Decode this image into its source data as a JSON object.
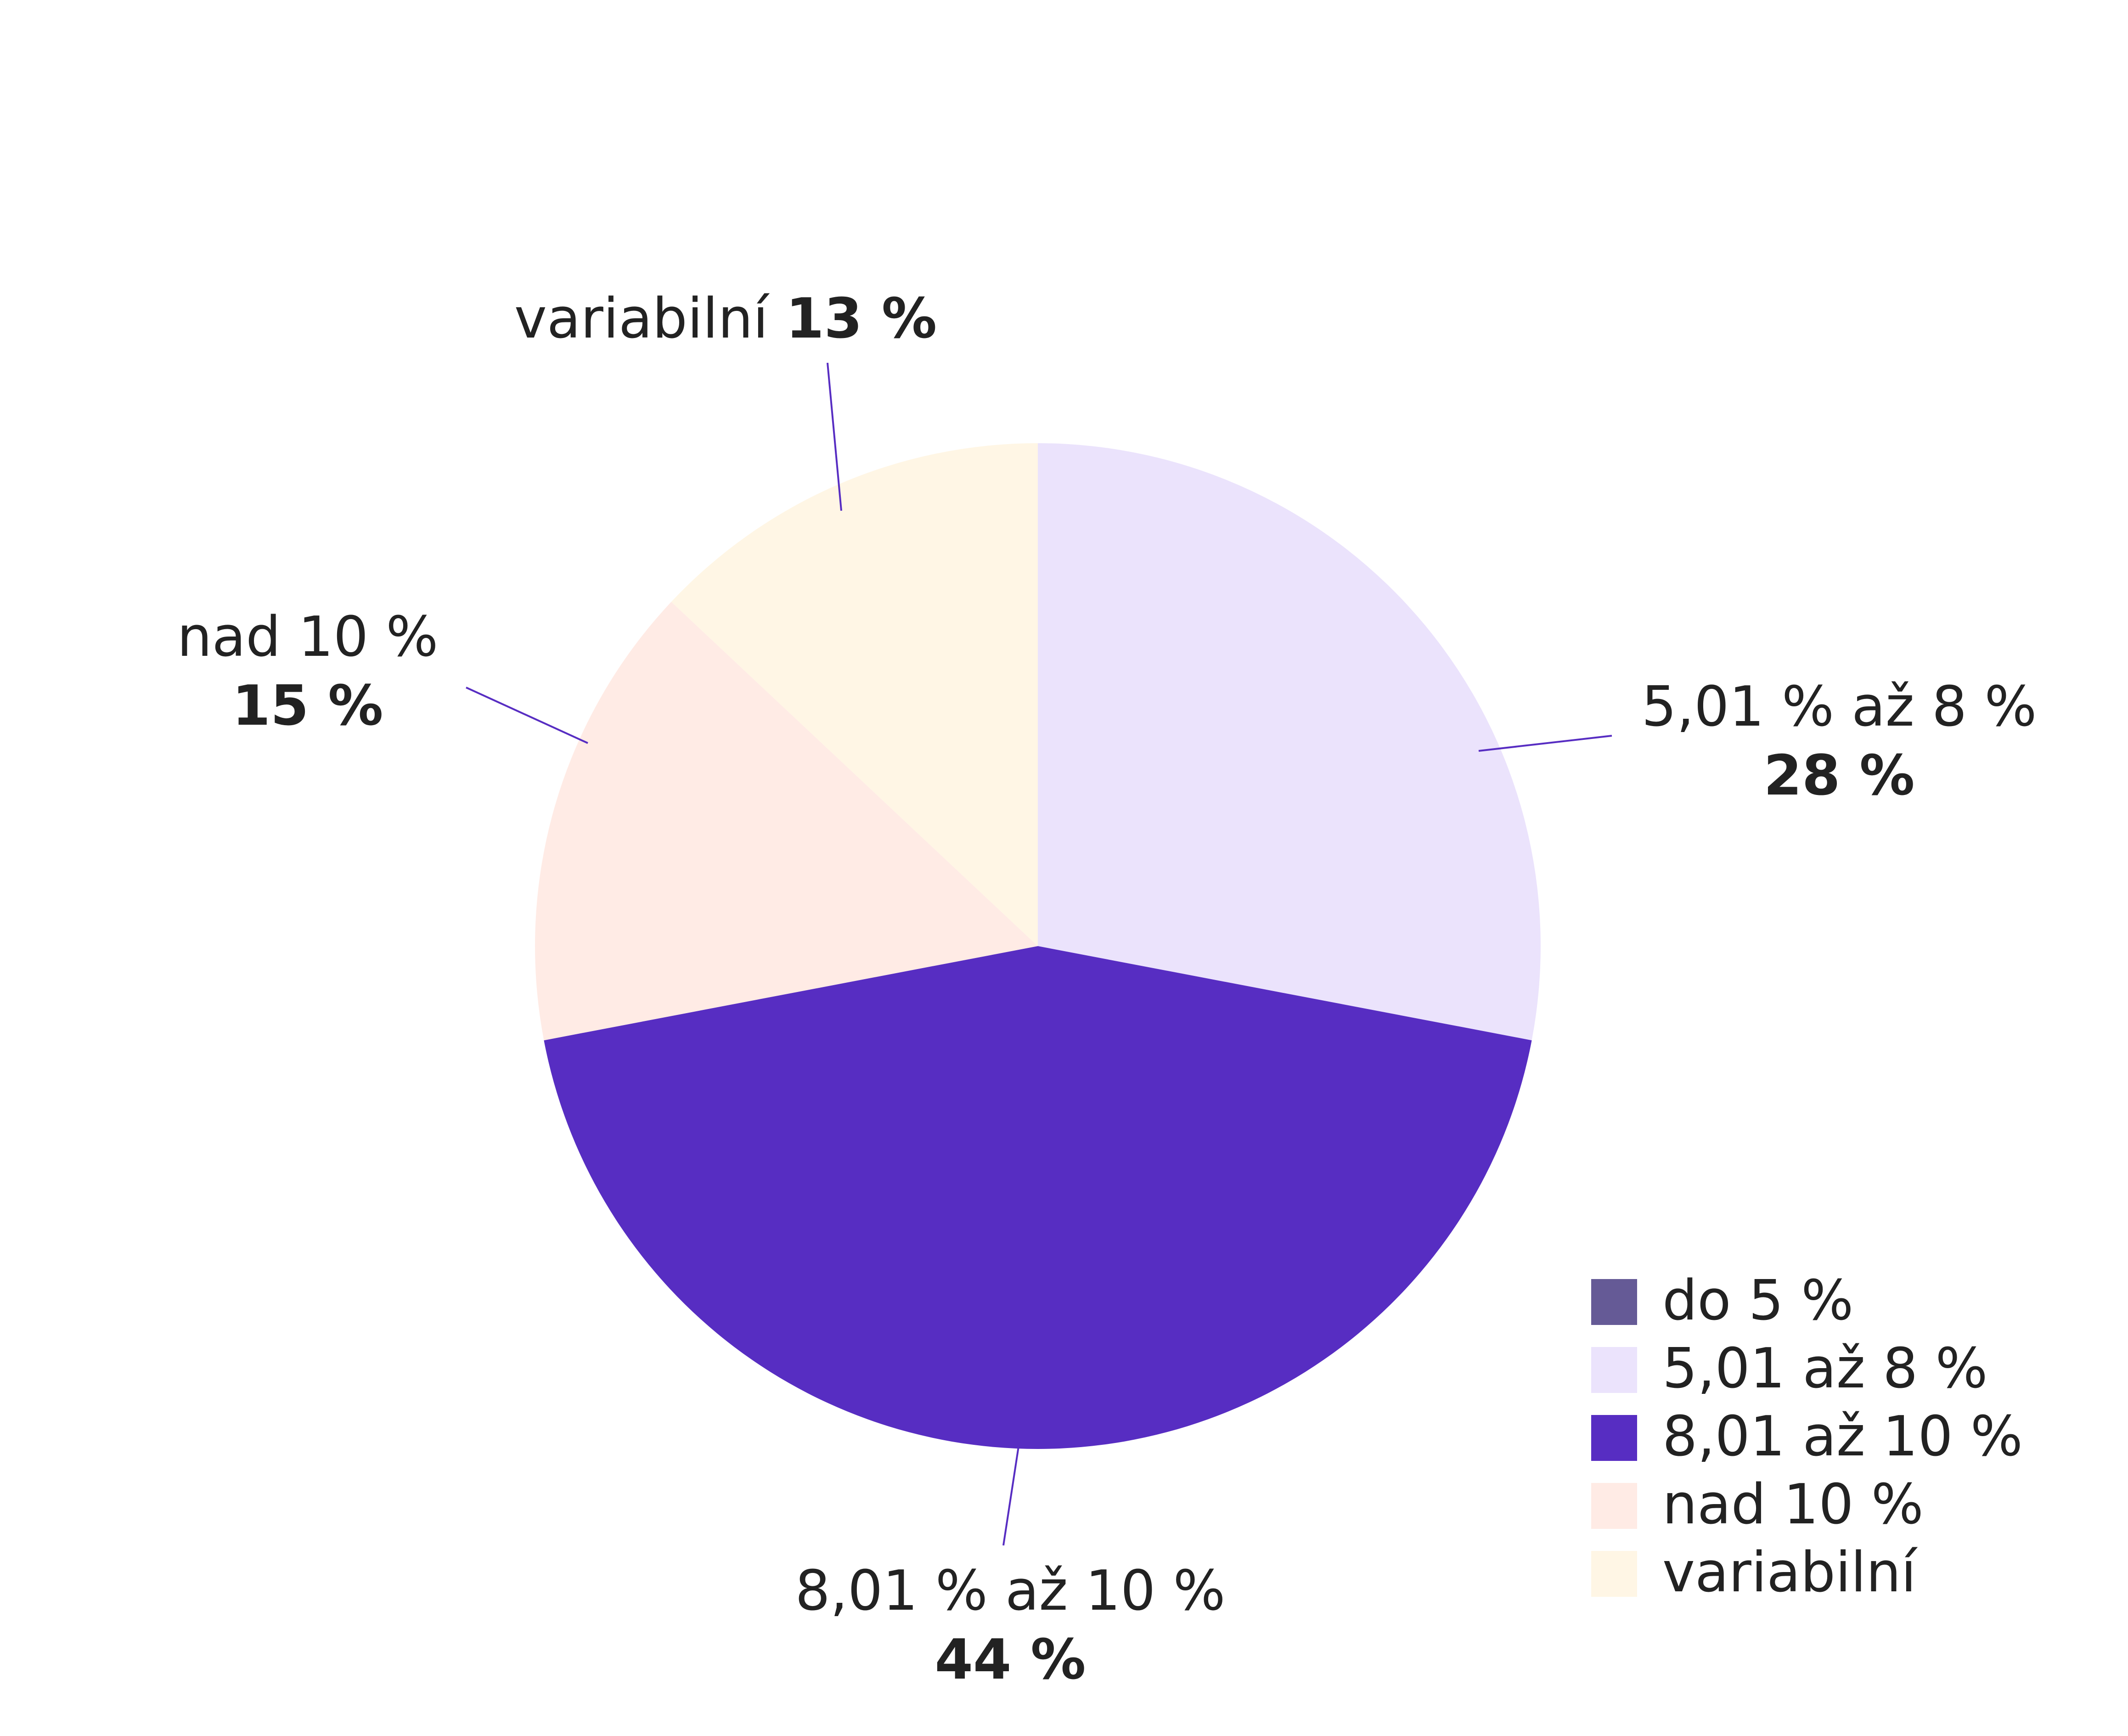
{
  "chart_data": {
    "type": "pie",
    "start_angle_deg": 0,
    "direction": "clockwise",
    "slices": [
      {
        "label": "do 5 %",
        "display_label": "",
        "value": 0,
        "value_label": "",
        "color": "#655A96",
        "label_style": "none"
      },
      {
        "label": "5,01 až 8 %",
        "display_label": "5,01 % až 8 %",
        "value": 28,
        "value_label": "28 %",
        "color": "#EBE3FC",
        "label_style": "stacked"
      },
      {
        "label": "8,01 až 10 %",
        "display_label": "8,01 % až 10 %",
        "value": 44,
        "value_label": "44 %",
        "color": "#572DC2",
        "label_style": "stacked"
      },
      {
        "label": "nad 10 %",
        "display_label": "nad 10 %",
        "value": 15,
        "value_label": "15 %",
        "color": "#FFEBE5",
        "label_style": "stacked"
      },
      {
        "label": "variabilní",
        "display_label": "variabilní",
        "value": 13,
        "value_label": "13 %",
        "color": "#FFF6E5",
        "label_style": "inline"
      }
    ],
    "legend": {
      "position": "bottom-right",
      "items": [
        {
          "label": "do 5 %",
          "color": "#655A96"
        },
        {
          "label": "5,01 až 8 %",
          "color": "#EBE3FC"
        },
        {
          "label": "8,01 až 10 %",
          "color": "#572DC2"
        },
        {
          "label": "nad 10 %",
          "color": "#FFEBE5"
        },
        {
          "label": "variabilní",
          "color": "#FFF6E5"
        }
      ]
    },
    "leader_line_color": "#572DC2"
  }
}
